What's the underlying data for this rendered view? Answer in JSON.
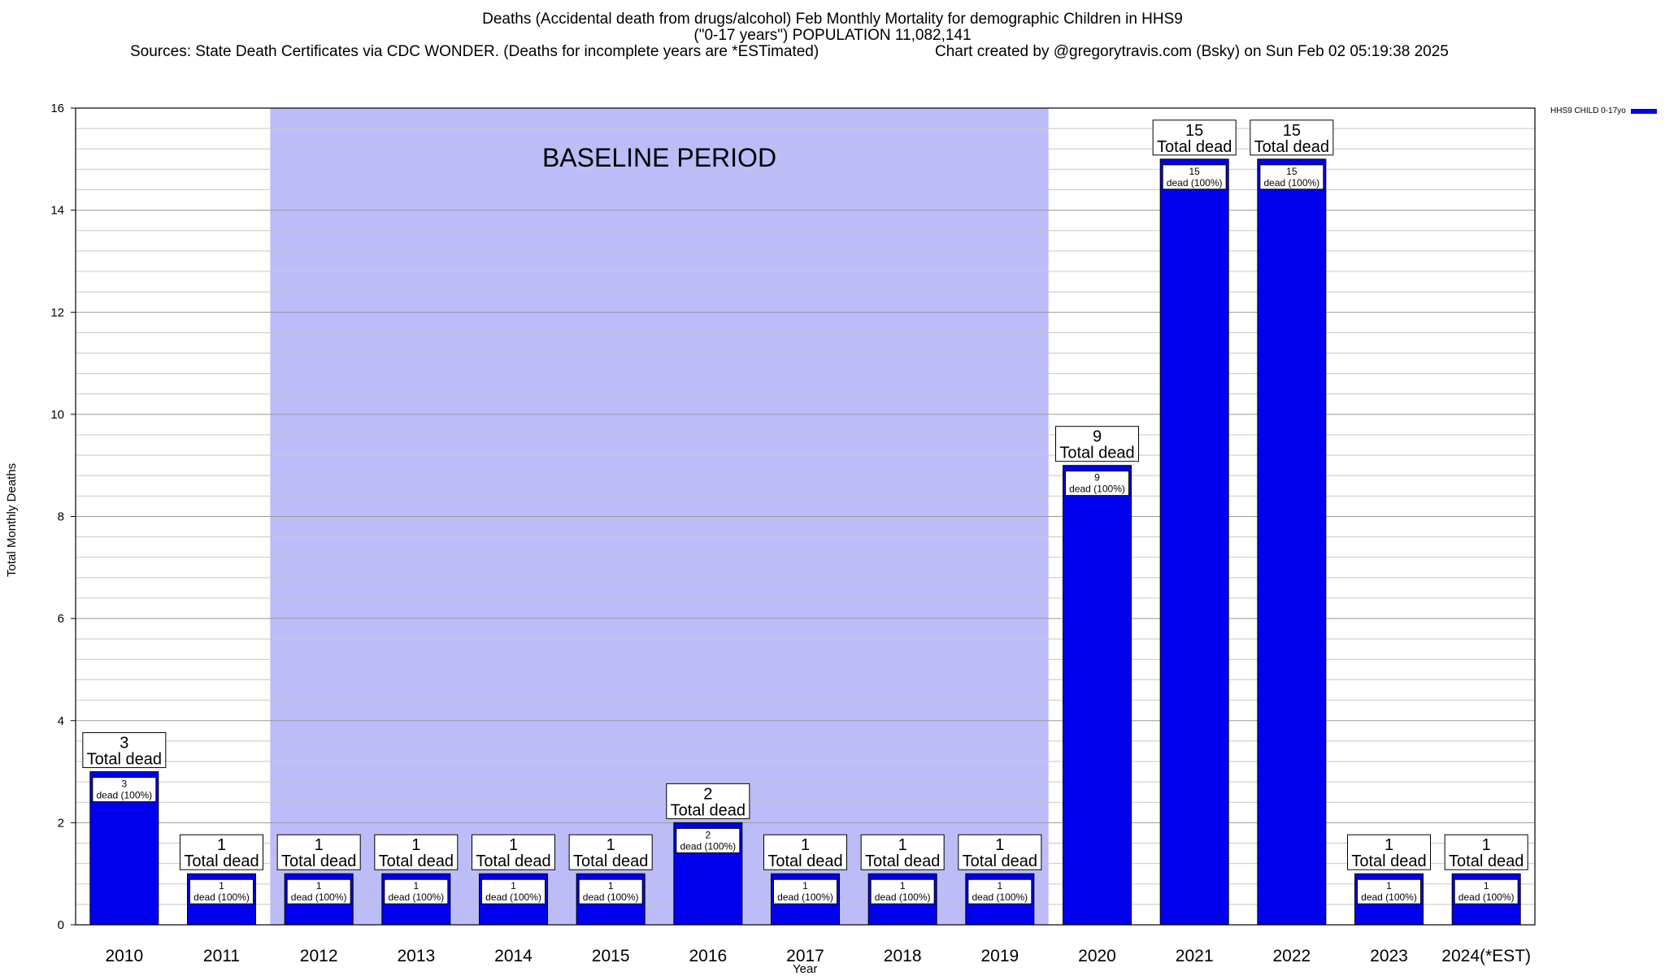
{
  "header": {
    "line1": "Deaths (Accidental death from drugs/alcohol) Feb Monthly Mortality for demographic Children in HHS9",
    "line2": "(\"0-17 years\") POPULATION 11,082,141",
    "line3": "Sources: State Death Certificates via CDC WONDER. (Deaths for incomplete years are *ESTimated)",
    "line4": "Chart created by @gregorytravis.com (Bsky) on Sun Feb 02 05:19:38 2025"
  },
  "legend": {
    "label": "HHS9 CHILD 0-17yo"
  },
  "chart_data": {
    "type": "bar",
    "title": "Deaths (Accidental death from drugs/alcohol) Feb Monthly Mortality for demographic Children in HHS9",
    "xlabel": "Year",
    "ylabel": "Total Monthly Deaths",
    "ylim": [
      0,
      16
    ],
    "yticks": [
      0,
      2,
      4,
      6,
      8,
      10,
      12,
      14,
      16
    ],
    "grid": true,
    "legend_position": "top-right",
    "categories": [
      "2010",
      "2011",
      "2012",
      "2013",
      "2014",
      "2015",
      "2016",
      "2017",
      "2018",
      "2019",
      "2020",
      "2021",
      "2022",
      "2023",
      "2024(*EST)"
    ],
    "series": [
      {
        "name": "HHS9 CHILD 0-17yo",
        "color": "#0000ee",
        "values": [
          3,
          1,
          1,
          1,
          1,
          1,
          2,
          1,
          1,
          1,
          9,
          15,
          15,
          1,
          1
        ]
      }
    ],
    "annotations": {
      "baseline": {
        "label": "BASELINE PERIOD",
        "from": "2012",
        "to": "2019",
        "color": "#bcbcf8"
      },
      "total_label": "Total dead",
      "inner_label": "dead (100%)"
    }
  }
}
